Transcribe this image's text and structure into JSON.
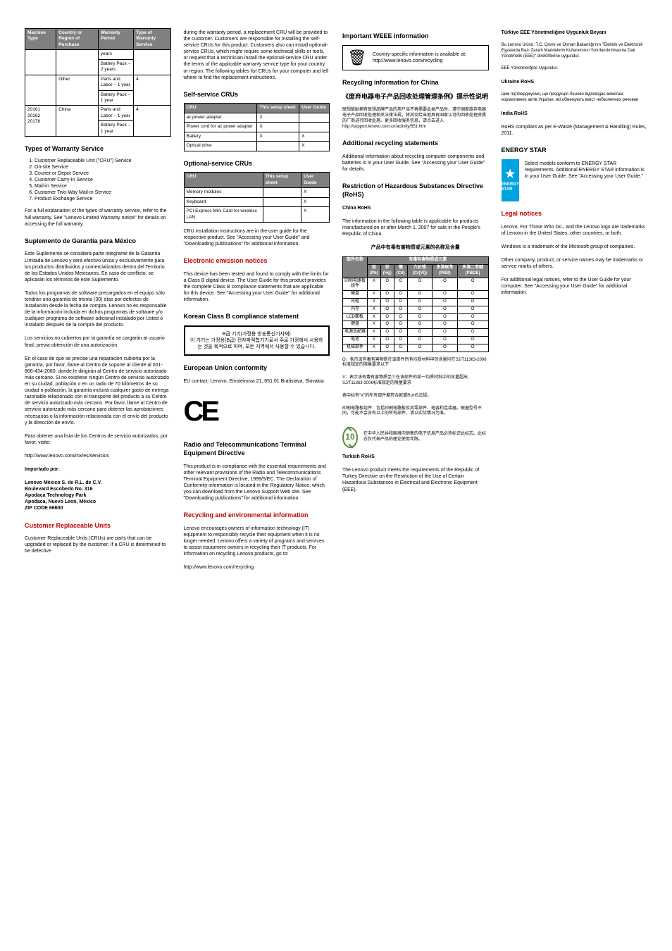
{
  "col1": {
    "warranty_table": {
      "headers": [
        "Machine Type",
        "Country or Region of Purchase",
        "Warranty Period",
        "Type of Warranty Service"
      ],
      "rows": [
        [
          "",
          "",
          "years",
          ""
        ],
        [
          "",
          "",
          "Battery Pack – 2 years",
          ""
        ],
        [
          "",
          "Other",
          "Parts and Labor – 1 year",
          "4"
        ],
        [
          "",
          "",
          "Battery Pack – 1 year",
          ""
        ],
        [
          "20161 20162 20176",
          "China",
          "Parts and Labor – 1 year",
          "4"
        ],
        [
          "",
          "",
          "Battery Pack – 1 year",
          ""
        ]
      ]
    },
    "types_heading": "Types of Warranty Service",
    "service_types": [
      "Customer Replaceable Unit (\"CRU\") Service",
      "On-site Service",
      "Courier or Depot Service",
      "Customer Carry-In Service",
      "Mail-in Service",
      "Customer Two-Way Mail-in Service",
      "Product Exchange Service"
    ],
    "types_note": "For a full explanation of the types of warranty service, refer to the full warranty. See \"Lenovo Limited Warranty notice\" for details on accessing the full warranty.",
    "mx_heading": "Suplemento de Garantía para México",
    "mx_p1": "Este Suplemento se considera parte integrante de la Garantía Limitada de Lenovo y será efectivo única y exclusivamente para los productos distribuidos y comercializados dentro del Territorio de los Estados Unidos Mexicanos. En caso de conflicto, se aplicarán los términos de este Suplemento.",
    "mx_p2": "Todos los programas de software precargados en el equipo sólo tendrán una garantía de treinta (30) días por defectos de instalación desde la fecha de compra. Lenovo no es responsable de la información incluida en dichos programas de software y/o cualquier programa de software adicional instalado por Usted o instalado después de la compra del producto.",
    "mx_p3": "Los servicios no cubiertos por la garantía se cargarán al usuario final, previa obtención de una autorización.",
    "mx_p4": "En el caso de que se precise una reparación cubierta por la garantía, por favor, llame al Centro de soporte al cliente al 001-866-434-2080, donde le dirigirán al Centro de servicio autorizado más cercano. Si no existiese ningún Centro de servicio autorizado en su ciudad, población o en un radio de 70 kilómetros de su ciudad o población, la garantía incluirá cualquier gasto de entrega razonable relacionado con el transporte del producto a su Centro de servicio autorizado más cercano. Por favor, llame al Centro de servicio autorizado más cercano para obtener las aprobaciones necesarias o la información relacionada con el envío del producto y la dirección de envío.",
    "mx_p5": "Para obtener una lista de los Centros de servicio autorizados, por favor, visite:",
    "mx_url": "http://www.lenovo.com/mx/es/servicios",
    "mx_imp": "Importado por:",
    "mx_addr": "Lenovo México S. de R.L. de C.V.\nBoulevard Escobedo No. 316\nApodaca Technology Park\nApodaca, Nuevo Leon,  México\nZIP CODE 66600",
    "cru_heading": "Customer Replaceable Units",
    "cru_p1": "Customer Replaceable Units (CRUs) are parts that can be upgraded or replaced by the customer. If a CRU is determined to be defective"
  },
  "col2": {
    "cru_cont": "during the warranty period, a replacement CRU will be provided to the customer. Customers are responsible for installing the self-service CRUs for this product. Customers also can install optional-service CRUs, which might require some technical skills or tools, or request that a technician install the optional-service CRU under the terms of the applicable warranty service type for your country or region. The following tables list CRUs for your computer and tell where to find the replacement instructions.",
    "ss_heading": "Self-service CRUs",
    "ss_table": {
      "headers": [
        "CRU",
        "This setup sheet",
        "User Guide"
      ],
      "rows": [
        [
          "ac power adapter",
          "X",
          ""
        ],
        [
          "Power cord for ac power adapter",
          "X",
          ""
        ],
        [
          "Battery",
          "X",
          "X"
        ],
        [
          "Optical drive",
          "",
          "X"
        ]
      ]
    },
    "os_heading": "Optional-service CRUs",
    "os_table": {
      "headers": [
        "CRU",
        "This setup sheet",
        "User Guide"
      ],
      "rows": [
        [
          "Memory modules",
          "",
          "X"
        ],
        [
          "Keyboard",
          "",
          "X"
        ],
        [
          "PCI Express Mini Card for wireless LAN",
          "",
          "X"
        ]
      ]
    },
    "os_note": "CRU installation instructions are in the user guide for the respective product. See \"Accessing your User Guide\" and \"Downloading publications\" for additional information.",
    "een_heading": "Electronic emission notices",
    "een_p1": "This device has been tested and found to comply with the limits for a Class B digital device. The User Guide for this product provides the complete Class B compliance statements that are applicable for this device. See \"Accessing your User Guide\" for additional information.",
    "kr_heading": "Korean Class B compliance statement",
    "kr_box": "B급 기기(가정용 방송통신기자재)\n이 기기는 가정용(B급) 전자파적합기기로서 주로 가정에서 사용하는 것을 목적으로 하며, 모든 지역에서 사용할 수 있습니다.",
    "eu_heading": "European Union conformity",
    "eu_contact": "EU contact: Lenovo, Einsteinova 21, 851 01 Bratislava, Slovakia",
    "rtt_heading": "Radio and Telecommunications Terminal Equipment Directive",
    "rtt_p1": "This product is in compliance with the essential requirements and other relevant provisions of the Radio and Telecommunications Terminal Equipment Directive, 1999/5/EC. The Declaration of Conformity information is located in the Regulatory Notice, which you can download from the Lenovo Support Web site. See \"Downloading publications\" for additional information.",
    "rec_heading": "Recycling and environmental information",
    "rec_p1": "Lenovo encourages owners of information technology (IT) equipment to responsibly recycle their equipment when it is no longer needed. Lenovo offers a variety of programs and services to assist equipment owners in recycling their IT products. For information on recycling Lenovo products, go to:",
    "rec_url": "http://www.lenovo.com/recycling"
  },
  "col3": {
    "weee_heading": "Important WEEE information",
    "weee_text": "Country-specific information is available at: http://www.lenovo.com/recycling",
    "cn_rec_heading": "Recycling information for China",
    "cn_rec_title": "《废弃电器电子产品回收处理管理条例》提示性说明",
    "cn_rec_body": "联想鼓励拥有联想品牌产品的用户当不再需要此类产品时，遵守国家废弃电器电子产品回收处理相关法律法规，将其交给当地具有国家认可的回收处理资质的厂商进行回收处理。更多回收服务信息，请点击进入 http://support.lenovo.com.cn/activity/551.htm",
    "add_rec_heading": "Additional recycling statements",
    "add_rec_p1": "Additional information about recycling computer components and batteries is in your User Guide. See \"Accessing your User Guide\" for details.",
    "rohs_heading": "Restriction of Hazardous Substances Directive (RoHS)",
    "cn_rohs_heading": "China RoHS",
    "cn_rohs_p1": "The information in the following table is applicable for products manufactured on or after March 1, 2007 for sale in the People's Republic of China.",
    "cn_table_title": "产品中有毒有害物质或元素的名称及含量",
    "cn_table": {
      "header_top": "有毒有害物质或元素",
      "headers": [
        "部件名称",
        "铅(Pb)",
        "汞(Hg)",
        "镉(Cd)",
        "六价铬(Cr(VI))",
        "多溴联苯(PBB)",
        "多溴二苯醚(PBDE)"
      ],
      "rows": [
        [
          "印刷电路板组件",
          "X",
          "O",
          "O",
          "O",
          "O",
          "O"
        ],
        [
          "硬盘",
          "X",
          "O",
          "O",
          "O",
          "O",
          "O"
        ],
        [
          "光驱",
          "X",
          "O",
          "O",
          "O",
          "O",
          "O"
        ],
        [
          "内存",
          "X",
          "O",
          "O",
          "O",
          "O",
          "O"
        ],
        [
          "LCD面板",
          "X",
          "O",
          "O",
          "O",
          "O",
          "O"
        ],
        [
          "键盘",
          "X",
          "O",
          "O",
          "O",
          "O",
          "O"
        ],
        [
          "电源适配器",
          "X",
          "O",
          "O",
          "O",
          "O",
          "O"
        ],
        [
          "电池",
          "X",
          "O",
          "O",
          "O",
          "O",
          "O"
        ],
        [
          "机械部件",
          "X",
          "O",
          "O",
          "O",
          "O",
          "O"
        ]
      ]
    },
    "cn_note1": "O：表示该有毒有害物质在该部件所有均质材料中的含量均在SJ/T11363-2006标准规定的限量要求以下",
    "cn_note2": "X：表示该有毒有害物质至少在该部件的某一均质材料中的含量超出SJ/T11363-2006标准规定的限量要求",
    "cn_note3": "表中标有\"X\"的所有部件都符合欧盟RoHS法规。",
    "cn_note4": "印刷电路板组件：包括印刷电路板及其零部件、电容和连接器。根据型号不同，可能不会含有以上的所有部件，请以实际情况为准。",
    "cn_label_text": "在中华人民共和国境内销售的电子信息产品必须标识此标志。此标志仅代表产品的理论使用年限。",
    "tr_heading": "Turkish RoHS",
    "tr_p1": "The Lenovo product meets the requirements of the Republic of Turkey Directive on the Restriction of the Use of Certain Hazardous Substances in Electrical and Electronic Equipment (EEE)."
  },
  "col4": {
    "tr_title": "Türkiye EEE Yönetmeliğine Uygunluk Beyanı",
    "tr_body": "Bu Lenovo ürünü, T.C. Çevre ve Orman Bakanlığı'nın \"Elektrik ve Elektronik Eşyalarda Bazı Zararlı Maddelerin Kullanımının Sınırlandırılmasına Dair Yönetmelik (EEE)\" direktiflerine uygundur.",
    "tr_foot": "EEE Yönetmeliğine Uygundur.",
    "ua_heading": "Ukraine RoHS",
    "ua_body": "Цим підтверджуємо, що продукція Леново відповідає вимогам нормативних актів України, які обмежують вміст небезпечних речовин",
    "in_heading": "India RoHS",
    "in_p1": "RoHS compliant as per E-Waste (Management & Handling) Rules, 2011.",
    "es_heading": "ENERGY STAR",
    "es_text": "Select models conform to ENERGY STAR requirements. Additional ENERGY STAR information is in your User Guide. See \"Accessing your User Guide.\"",
    "legal_heading": "Legal notices",
    "legal_p1": "Lenovo, For Those Who Do., and the Lenovo logo are trademarks of Lenovo in the United States, other countries, or both.",
    "legal_p2": "Windows is a trademark of the Microsoft group of companies.",
    "legal_p3": "Other company, product, or service names may be trademarks or service marks of others.",
    "legal_p4": "For additional legal notices, refer to the User Guide for your computer. See \"Accessing your User Guide\" for additional information."
  }
}
